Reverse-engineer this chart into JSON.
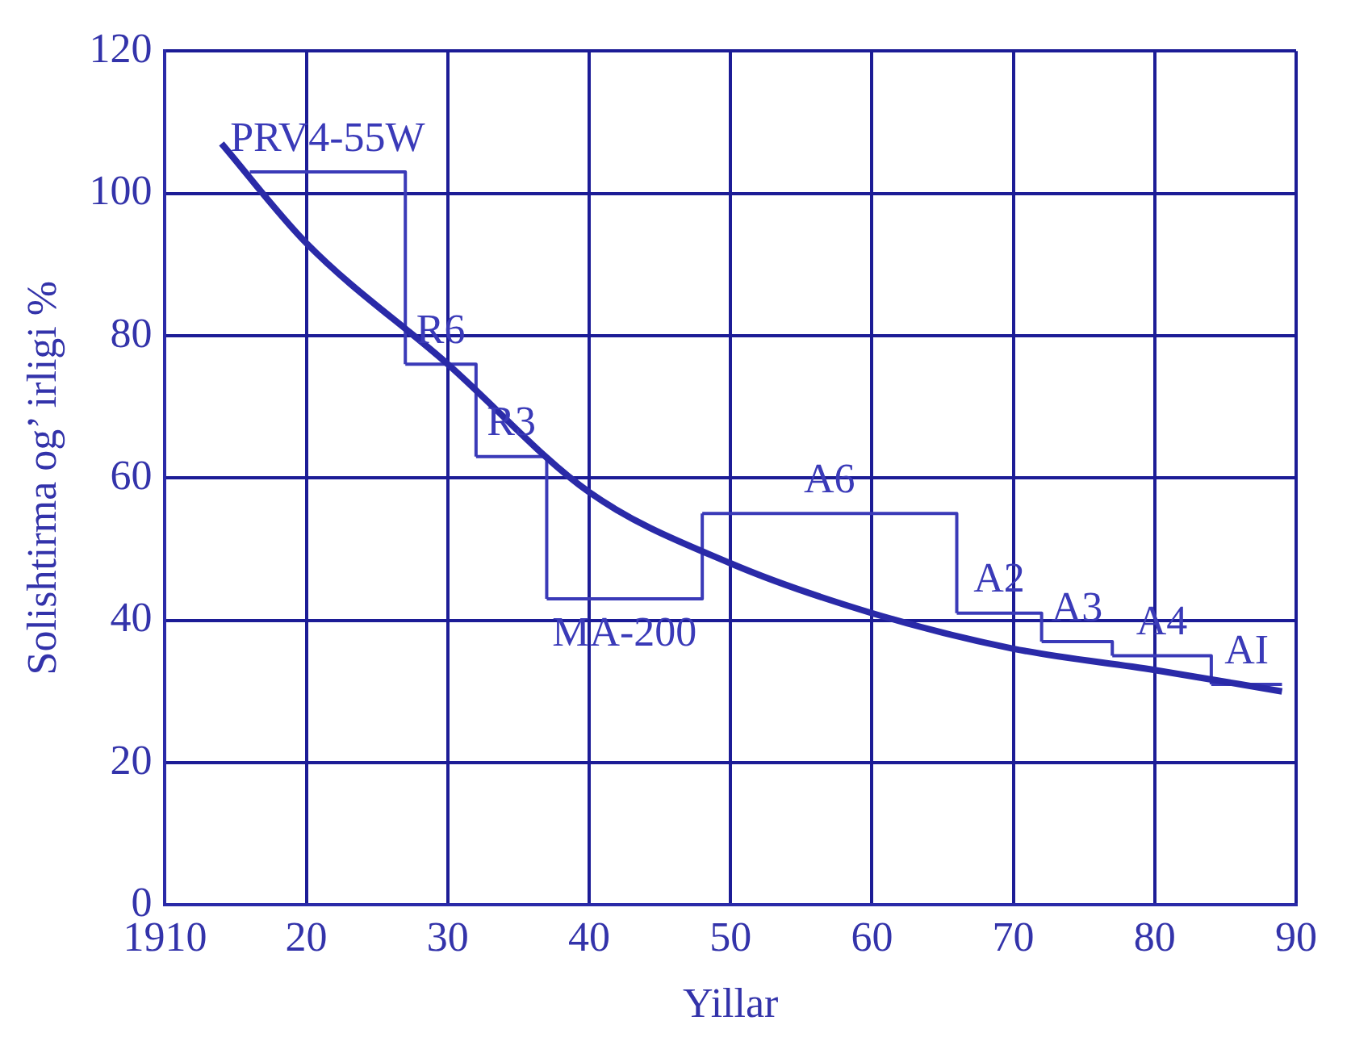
{
  "chart_data": {
    "type": "line",
    "xlabel": "Yillar",
    "ylabel": "Solishtirma og’ irligi %",
    "xlim": [
      1910,
      1990
    ],
    "xticks": [
      1910,
      {
        "value": 1920,
        "label": "20"
      },
      {
        "value": 1930,
        "label": "30"
      },
      {
        "value": 1940,
        "label": "40"
      },
      {
        "value": 1950,
        "label": "50"
      },
      {
        "value": 1960,
        "label": "60"
      },
      {
        "value": 1970,
        "label": "70"
      },
      {
        "value": 1980,
        "label": "80"
      },
      {
        "value": 1990,
        "label": "90"
      }
    ],
    "ylim": [
      0,
      120
    ],
    "yticks": [
      0,
      20,
      40,
      60,
      80,
      100,
      120
    ],
    "grid": true,
    "legend": false,
    "marker": "none",
    "series": [
      {
        "color": "#2a2aa8",
        "x": [
          1914,
          1920,
          1930,
          1940,
          1950,
          1960,
          1970,
          1980,
          1989
        ],
        "values": [
          107,
          93,
          76,
          58,
          48,
          41,
          36,
          33,
          30
        ]
      },
      {
        "type": "step",
        "name": "PRV4-55W",
        "color": "#3a3ab8",
        "x": [
          1916,
          1927
        ],
        "values": [
          103,
          76
        ]
      },
      {
        "type": "step",
        "name": "R6",
        "color": "#3a3ab8",
        "x": [
          1927,
          1932
        ],
        "values": [
          76,
          63
        ]
      },
      {
        "type": "step",
        "name": "R3",
        "color": "#3a3ab8",
        "x": [
          1932,
          1937
        ],
        "values": [
          63,
          43
        ]
      },
      {
        "type": "step",
        "name": "MA-200",
        "color": "#3a3ab8",
        "x": [
          1937,
          1948
        ],
        "values": [
          43,
          55
        ]
      },
      {
        "type": "step",
        "name": "A6",
        "color": "#3a3ab8",
        "x": [
          1948,
          1966
        ],
        "values": [
          55,
          41
        ]
      },
      {
        "type": "step",
        "name": "A2",
        "color": "#3a3ab8",
        "x": [
          1966,
          1972
        ],
        "values": [
          41,
          37
        ]
      },
      {
        "type": "step",
        "name": "A3",
        "color": "#3a3ab8",
        "x": [
          1972,
          1977
        ],
        "values": [
          37,
          35
        ]
      },
      {
        "type": "step",
        "name": "A4",
        "color": "#3a3ab8",
        "x": [
          1977,
          1984
        ],
        "values": [
          35,
          31
        ]
      },
      {
        "type": "step",
        "name": "AI",
        "color": "#3a3ab8",
        "x": [
          1984,
          1989
        ],
        "values": [
          31,
          31
        ]
      }
    ]
  }
}
